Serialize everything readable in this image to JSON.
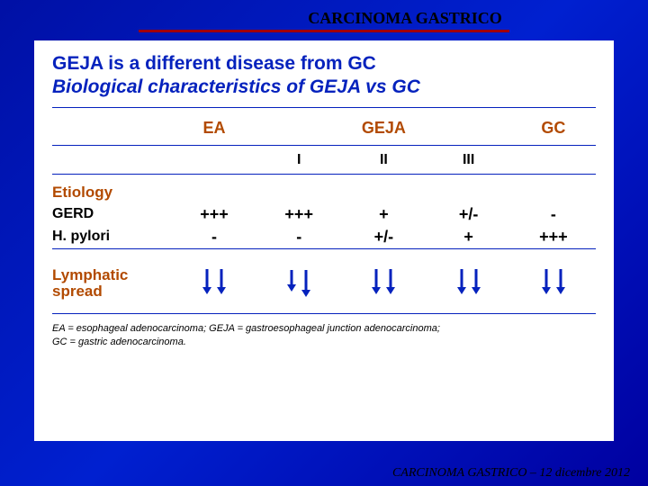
{
  "top_title": "CARCINOMA GASTRICO",
  "heading1": "GEJA is a different disease from GC",
  "heading2": "Biological characteristics of GEJA vs GC",
  "colhead": {
    "ea": "EA",
    "geja": "GEJA",
    "gc": "GC"
  },
  "subhead": {
    "i": "I",
    "ii": "II",
    "iii": "III"
  },
  "sections": {
    "etiology": "Etiology",
    "lymphatic": "Lymphatic spread"
  },
  "rows": {
    "gerd": {
      "label": "GERD",
      "ea": "+++",
      "i": "+++",
      "ii": "+",
      "iii": "+/-",
      "gc": "-"
    },
    "hpylori": {
      "label": "H. pylori",
      "ea": "-",
      "i": "-",
      "ii": "+/-",
      "iii": "+",
      "gc": "+++"
    }
  },
  "arrows": {
    "ea": {
      "len1": 28,
      "len2": 28
    },
    "i": {
      "len1": 24,
      "len2": 30
    },
    "ii": {
      "len1": 28,
      "len2": 28
    },
    "iii": {
      "len1": 28,
      "len2": 28
    },
    "gc": {
      "len1": 28,
      "len2": 28
    }
  },
  "legend1": "EA = esophageal adenocarcinoma; GEJA = gastroesophageal junction adenocarcinoma;",
  "legend2": "GC = gastric adenocarcinoma.",
  "footer": "CARCINOMA GASTRICO – 12 dicembre 2012",
  "colors": {
    "accent_blue": "#0522bd",
    "accent_orange": "#b24a00",
    "rule_red": "#a00000",
    "bg_blue": "#0010a5"
  }
}
